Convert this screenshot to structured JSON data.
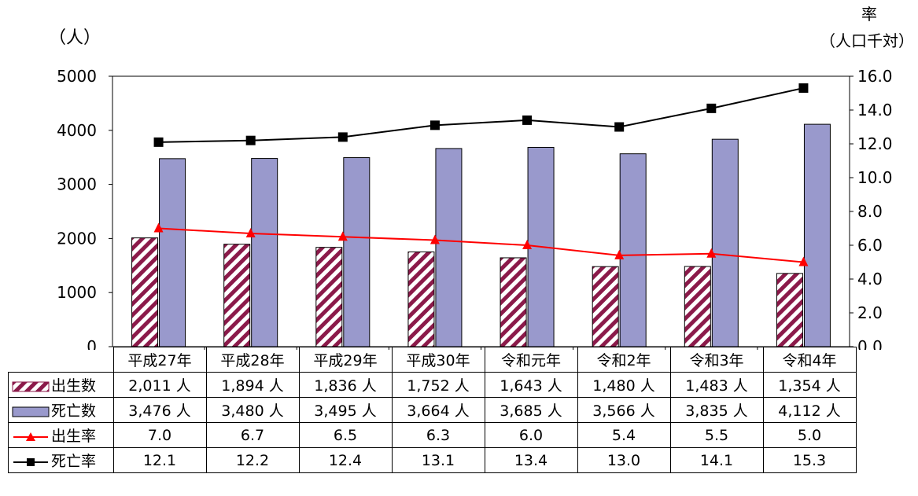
{
  "chart_data": {
    "type": "bar",
    "categories": [
      "平成27年",
      "平成28年",
      "平成29年",
      "平成30年",
      "令和元年",
      "令和2年",
      "令和3年",
      "令和4年"
    ],
    "left_axis": {
      "unit_label": "（人）",
      "ylim": [
        0,
        5000
      ],
      "ticks": [
        "0",
        "1000",
        "2000",
        "3000",
        "4000",
        "5000"
      ]
    },
    "right_axis": {
      "unit_label_line1": "率",
      "unit_label_line2": "（人口千対）",
      "ylim": [
        0,
        16
      ],
      "ticks": [
        "0.0",
        "2.0",
        "4.0",
        "6.0",
        "8.0",
        "10.0",
        "12.0",
        "14.0",
        "16.0"
      ]
    },
    "series": [
      {
        "name": "出生数",
        "kind": "bar",
        "axis": "left",
        "color": "#8B1A4A",
        "pattern": "diagonal-hatch",
        "values": [
          2011,
          1894,
          1836,
          1752,
          1643,
          1480,
          1483,
          1354
        ],
        "labels": [
          "2,011 人",
          "1,894 人",
          "1,836 人",
          "1,752 人",
          "1,643 人",
          "1,480 人",
          "1,483 人",
          "1,354 人"
        ]
      },
      {
        "name": "死亡数",
        "kind": "bar",
        "axis": "left",
        "color": "#9999CC",
        "values": [
          3476,
          3480,
          3495,
          3664,
          3685,
          3566,
          3835,
          4112
        ],
        "labels": [
          "3,476 人",
          "3,480 人",
          "3,495 人",
          "3,664 人",
          "3,685 人",
          "3,566 人",
          "3,835 人",
          "4,112 人"
        ]
      },
      {
        "name": "出生率",
        "kind": "line",
        "axis": "right",
        "color": "#FF0000",
        "marker": "triangle",
        "values": [
          7.0,
          6.7,
          6.5,
          6.3,
          6.0,
          5.4,
          5.5,
          5.0
        ],
        "labels": [
          "7.0",
          "6.7",
          "6.5",
          "6.3",
          "6.0",
          "5.4",
          "5.5",
          "5.0"
        ]
      },
      {
        "name": "死亡率",
        "kind": "line",
        "axis": "right",
        "color": "#000000",
        "marker": "square",
        "values": [
          12.1,
          12.2,
          12.4,
          13.1,
          13.4,
          13.0,
          14.1,
          15.3
        ],
        "labels": [
          "12.1",
          "12.2",
          "12.4",
          "13.1",
          "13.4",
          "13.0",
          "14.1",
          "15.3"
        ]
      }
    ],
    "grid": false,
    "legend": "data-table"
  }
}
